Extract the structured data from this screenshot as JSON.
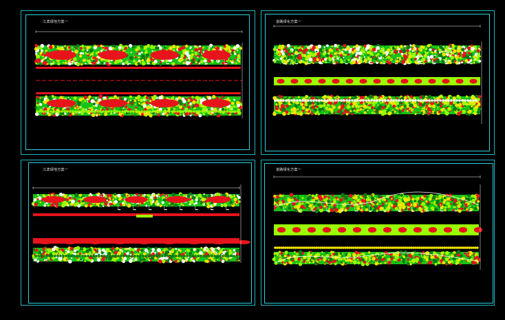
{
  "colors": {
    "background": "#000000",
    "frame": "#29d3e0",
    "green": "#17c317",
    "dark_green": "#0a7a12",
    "lime": "#9aff00",
    "red": "#e8141c",
    "yellow": "#f2e400",
    "magenta": "#e060e0",
    "white": "#ffffff"
  },
  "sheets": [
    {
      "title": "江滨绿地方案一"
    },
    {
      "title": "道路绿化方案一"
    },
    {
      "title": "江滨绿地方案一"
    },
    {
      "title": "道路绿化方案一"
    }
  ]
}
